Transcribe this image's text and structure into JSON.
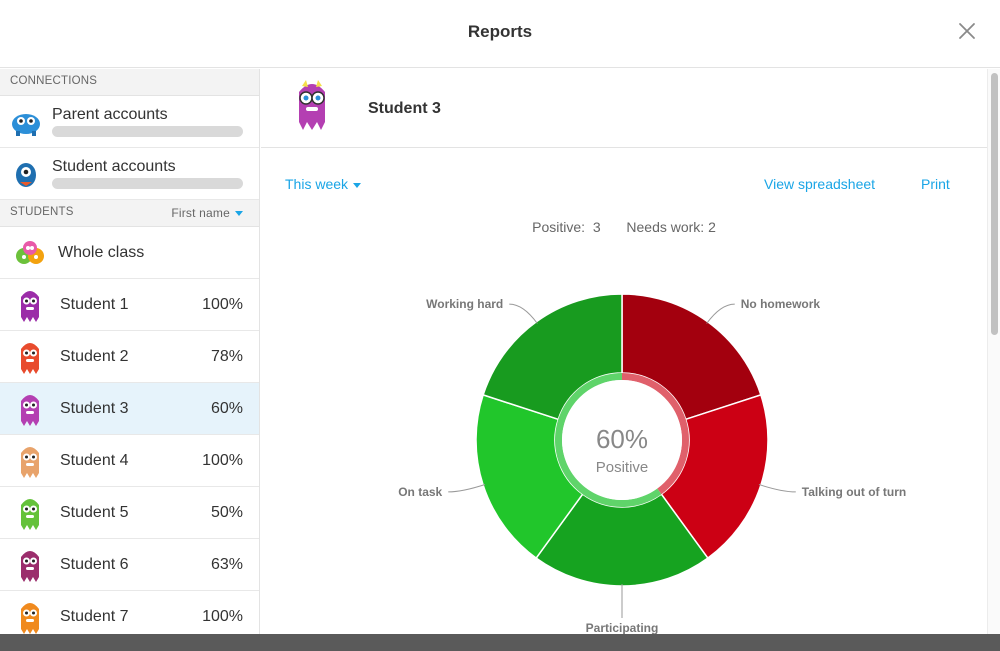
{
  "header": {
    "title": "Reports"
  },
  "sidebar": {
    "connections_heading": "CONNECTIONS",
    "connections": [
      {
        "label": "Parent accounts",
        "icon": "parent-monster-icon"
      },
      {
        "label": "Student accounts",
        "icon": "student-monster-icon"
      }
    ],
    "students_heading": "STUDENTS",
    "sort_label": "First name",
    "whole_class": "Whole class",
    "students": [
      {
        "name": "Student 1",
        "pct": "100%",
        "color": "#9b2ca8"
      },
      {
        "name": "Student 2",
        "pct": "78%",
        "color": "#e84b2d"
      },
      {
        "name": "Student 3",
        "pct": "60%",
        "color": "#b43fb2",
        "selected": true
      },
      {
        "name": "Student 4",
        "pct": "100%",
        "color": "#e8a36b"
      },
      {
        "name": "Student 5",
        "pct": "50%",
        "color": "#64c23a"
      },
      {
        "name": "Student 6",
        "pct": "63%",
        "color": "#9b2d6c"
      },
      {
        "name": "Student 7",
        "pct": "100%",
        "color": "#f08a1e"
      }
    ]
  },
  "main": {
    "student_name": "Student 3",
    "period_label": "This week",
    "view_spreadsheet": "View spreadsheet",
    "print": "Print",
    "positive_label": "Positive:",
    "positive_count": "3",
    "needs_work_label": "Needs work:",
    "needs_work_count": "2"
  },
  "chart_data": {
    "type": "pie",
    "center_value": "60%",
    "center_label": "Positive",
    "slices": [
      {
        "label": "No homework",
        "value": 1,
        "kind": "needs-work",
        "color": "#a3000e"
      },
      {
        "label": "Talking out of turn",
        "value": 1,
        "kind": "needs-work",
        "color": "#cc0014"
      },
      {
        "label": "Participating",
        "value": 1,
        "kind": "positive",
        "color": "#16a320"
      },
      {
        "label": "On task",
        "value": 1,
        "kind": "positive",
        "color": "#21c62b"
      },
      {
        "label": "Working hard",
        "value": 1,
        "kind": "positive",
        "color": "#189b1f"
      }
    ],
    "positive_ring_color": "#5fd46a",
    "needs_work_ring_color": "#e0606b"
  }
}
